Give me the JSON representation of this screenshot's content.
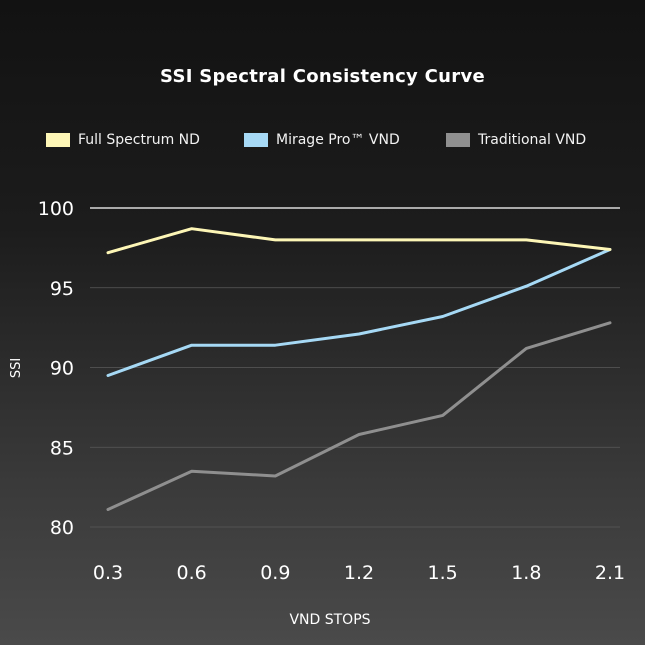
{
  "chart_data": {
    "type": "line",
    "title": "SSI Spectral Consistency Curve",
    "xlabel": "VND STOPS",
    "ylabel": "SSI",
    "categories": [
      "0.3",
      "0.6",
      "0.9",
      "1.2",
      "1.5",
      "1.8",
      "2.1"
    ],
    "yticks": [
      "80",
      "85",
      "90",
      "95",
      "100"
    ],
    "ylim": [
      80,
      100
    ],
    "grid": "horizontal",
    "legend_position": "top",
    "series": [
      {
        "name": "Full Spectrum ND",
        "color": "#fdf6b6",
        "values": [
          97.2,
          98.7,
          98.0,
          98.0,
          98.0,
          98.0,
          97.4
        ]
      },
      {
        "name": "Mirage Pro™ VND",
        "color": "#a6d9f5",
        "values": [
          89.5,
          91.4,
          91.4,
          92.1,
          93.2,
          95.1,
          97.4
        ]
      },
      {
        "name": "Traditional VND",
        "color": "#8f8f8f",
        "values": [
          81.1,
          83.5,
          83.2,
          85.8,
          87.0,
          91.2,
          92.8
        ]
      }
    ]
  }
}
